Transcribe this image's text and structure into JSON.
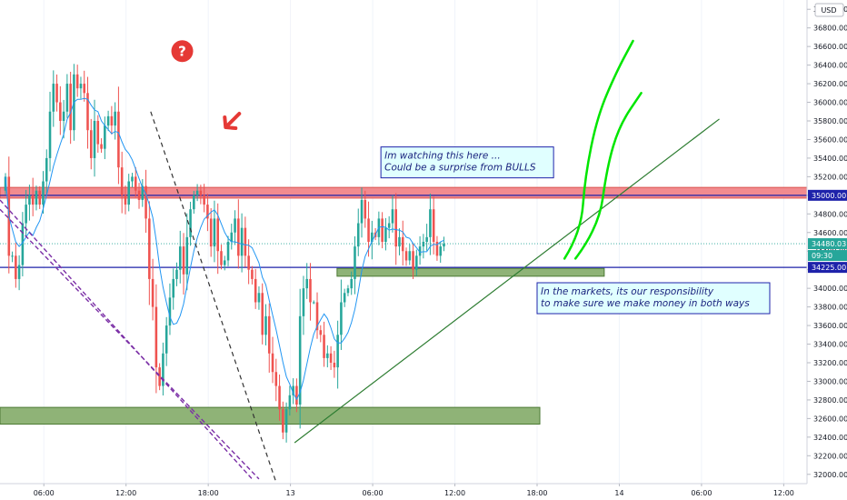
{
  "currency": "USD",
  "colors": {
    "up": "#26a69a",
    "down": "#ef5350",
    "ma": "#2196f3",
    "level": "#1e22aa",
    "resistance_zone": "#f28b8f",
    "support_zone": "#8fb377",
    "trendline": "#2e7d32",
    "projection": "#00e600",
    "dashed_dark": "#333333",
    "dashed_purple": "#7b2fa6",
    "current_price": "#26a69a",
    "annotation_bg": "#e0ffff"
  },
  "chart_data": {
    "type": "candlestick",
    "ylim": [
      31900,
      37100
    ],
    "yticks": [
      "37000.00",
      "36800.00",
      "36600.00",
      "36400.00",
      "36200.00",
      "36000.00",
      "35800.00",
      "35600.00",
      "35400.00",
      "35200.00",
      "35000.00",
      "34800.00",
      "34600.00",
      "34400.00",
      "34200.00",
      "34000.00",
      "33800.00",
      "33600.00",
      "33400.00",
      "33200.00",
      "33000.00",
      "32800.00",
      "32600.00",
      "32400.00",
      "32200.00",
      "32000.00"
    ],
    "xticks": [
      {
        "label": "06:00",
        "pos": 6
      },
      {
        "label": "12:00",
        "pos": 12
      },
      {
        "label": "18:00",
        "pos": 18
      },
      {
        "label": "13",
        "pos": 24
      },
      {
        "label": "06:00",
        "pos": 30
      },
      {
        "label": "12:00",
        "pos": 36
      },
      {
        "label": "18:00",
        "pos": 42
      },
      {
        "label": "14",
        "pos": 48
      },
      {
        "label": "06:00",
        "pos": 54
      },
      {
        "label": "12:00",
        "pos": 60
      }
    ],
    "xlim": [
      2.8,
      61.7
    ],
    "closes": [
      35200,
      34350,
      34350,
      34100,
      34250,
      34700,
      34900,
      35000,
      34900,
      35050,
      34900,
      35150,
      35400,
      35900,
      36200,
      36000,
      35800,
      35900,
      36200,
      35700,
      36300,
      36150,
      36200,
      36100,
      35700,
      35400,
      35800,
      35550,
      35500,
      35750,
      35850,
      35750,
      35900,
      35300,
      35000,
      34900,
      35150,
      35200,
      35050,
      34950,
      35100,
      34750,
      34100,
      33800,
      33150,
      32950,
      33300,
      33600,
      33900,
      34100,
      34200,
      34450,
      34150,
      34550,
      34850,
      35000,
      35050,
      35000,
      34900,
      34750,
      34450,
      34750,
      34400,
      34250,
      34300,
      34500,
      34600,
      34750,
      34350,
      34650,
      34350,
      34200,
      34100,
      33850,
      33950,
      33500,
      33700,
      33300,
      33100,
      32950,
      32700,
      32450,
      32700,
      32850,
      32950,
      32750,
      33700,
      34000,
      34100,
      33850,
      33850,
      33550,
      33500,
      33250,
      33300,
      33200,
      33150,
      33500,
      33850,
      33950,
      34000,
      34100,
      34450,
      34700,
      34950,
      34750,
      34500,
      34600,
      34550,
      34750,
      34500,
      34650,
      34700,
      34850,
      34450,
      34550,
      34400,
      34300,
      34400,
      34200,
      34350,
      34450,
      34500,
      34550,
      34850,
      34500,
      34350,
      34450,
      34480
    ],
    "start_index_time": 3.2,
    "bar_hours": 0.25,
    "current_price": "34480.03",
    "countdown": "09:30",
    "levels": [
      {
        "value": 35000,
        "label": "35000.00"
      },
      {
        "value": 34225,
        "label": "34225.00"
      }
    ],
    "resistance_zone": [
      34970,
      35085
    ],
    "support_zones": [
      {
        "from": 2.8,
        "to": 42.2,
        "low": 32540,
        "high": 32720
      },
      {
        "from": 27.4,
        "to": 46.9,
        "low": 34130,
        "high": 34215
      }
    ],
    "trendline": {
      "from": [
        24.3,
        32340
      ],
      "to": [
        55.3,
        35820
      ]
    },
    "dashed_dark": {
      "from": [
        13.8,
        35900
      ],
      "to": [
        23.1,
        31850
      ]
    },
    "dashed_purple": [
      {
        "from": [
          2.8,
          34950
        ],
        "to": [
          21.2,
          31950
        ]
      },
      {
        "from": [
          2.8,
          34850
        ],
        "to": [
          21.7,
          31950
        ]
      }
    ],
    "projections": [
      [
        [
          44.0,
          34320
        ],
        [
          45.2,
          34600
        ],
        [
          45.5,
          35200
        ],
        [
          46.4,
          35850
        ],
        [
          47.8,
          36330
        ],
        [
          49.0,
          36660
        ]
      ],
      [
        [
          44.8,
          34320
        ],
        [
          46.5,
          34650
        ],
        [
          47.1,
          35300
        ],
        [
          48.0,
          35750
        ],
        [
          49.6,
          36100
        ]
      ]
    ],
    "annotations": [
      {
        "lines": [
          "Im watching this here ...",
          "Could be a surprise from BULLS"
        ]
      },
      {
        "lines": [
          "In the markets, its our responsibility",
          "to make sure we make money in both ways"
        ]
      }
    ]
  }
}
